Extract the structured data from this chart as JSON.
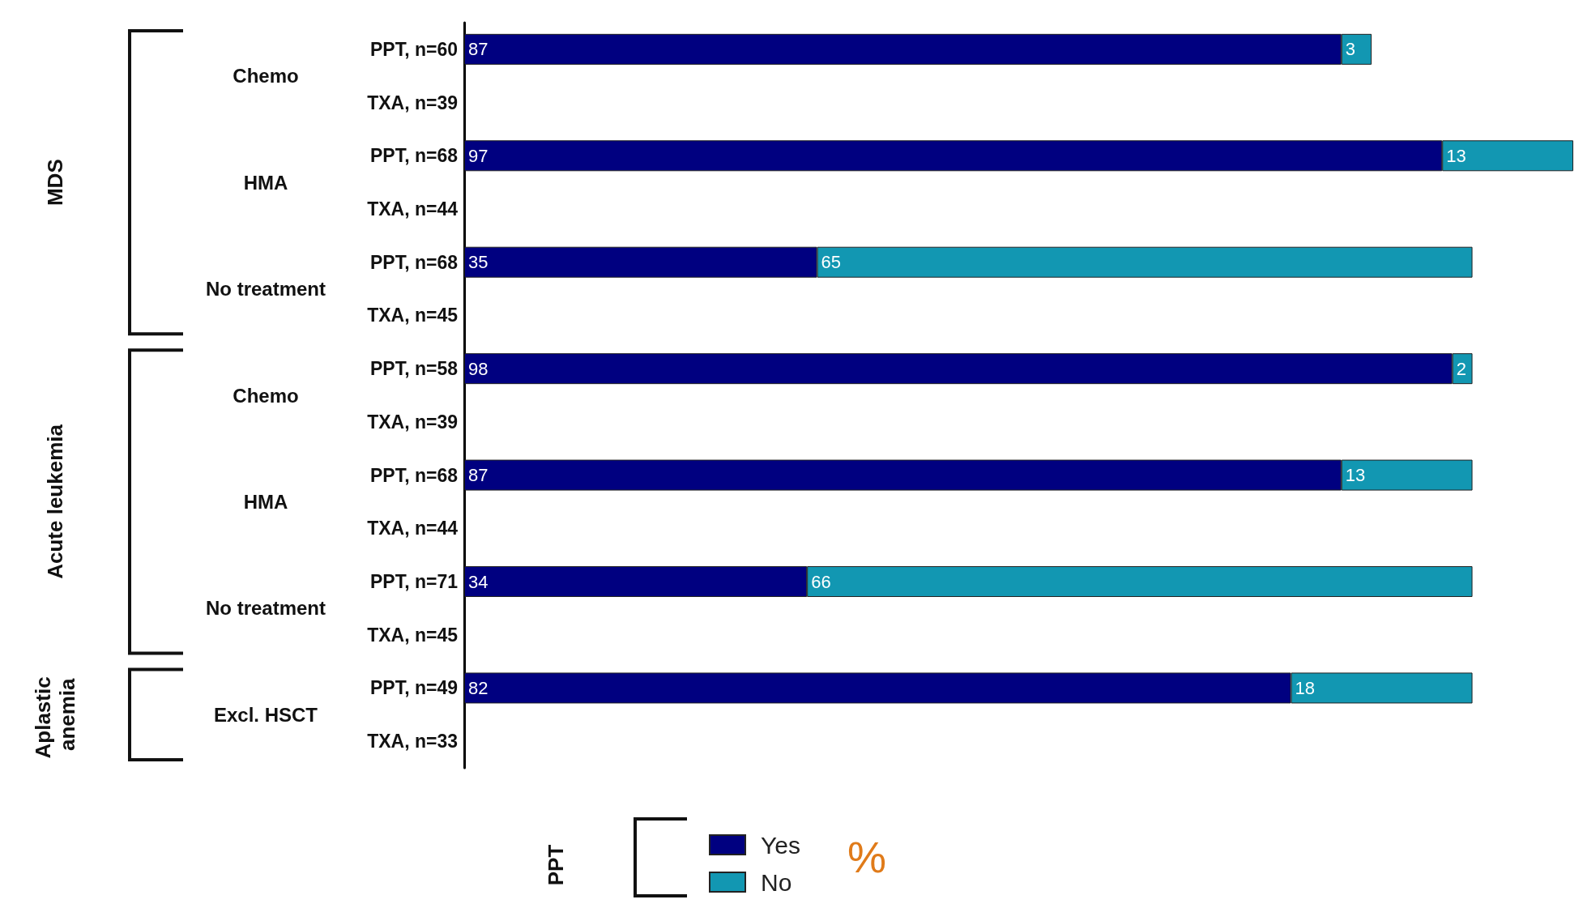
{
  "chart_data": {
    "type": "bar",
    "orientation": "horizontal",
    "stacked": true,
    "data_labels": true,
    "legend": "bottom",
    "legend_title": "PPT",
    "categories": [
      "PPT, n=60",
      "TXA, n=39",
      "PPT, n=68",
      "TXA, n=44",
      "PPT, n=68",
      "TXA, n=45",
      "PPT, n=58",
      "TXA, n=39",
      "PPT, n=68",
      "TXA, n=44",
      "PPT, n=71",
      "TXA, n=45",
      "PPT, n=49",
      "TXA, n=33"
    ],
    "series": [
      {
        "name": "Yes",
        "color": "#000080",
        "values": [
          87,
          null,
          97,
          null,
          35,
          null,
          98,
          null,
          87,
          null,
          34,
          null,
          82,
          null
        ]
      },
      {
        "name": "No",
        "color": "#1297b2",
        "values": [
          3,
          null,
          13,
          null,
          65,
          null,
          2,
          null,
          13,
          null,
          66,
          null,
          18,
          null
        ]
      }
    ],
    "annotations": [
      "MDS",
      "Chemo",
      "HMA",
      "No treatment",
      "Acute leukemia",
      "Chemo",
      "HMA",
      "No treatment",
      "Aplastic anemia",
      "Excl. HSCT",
      "%"
    ]
  }
}
